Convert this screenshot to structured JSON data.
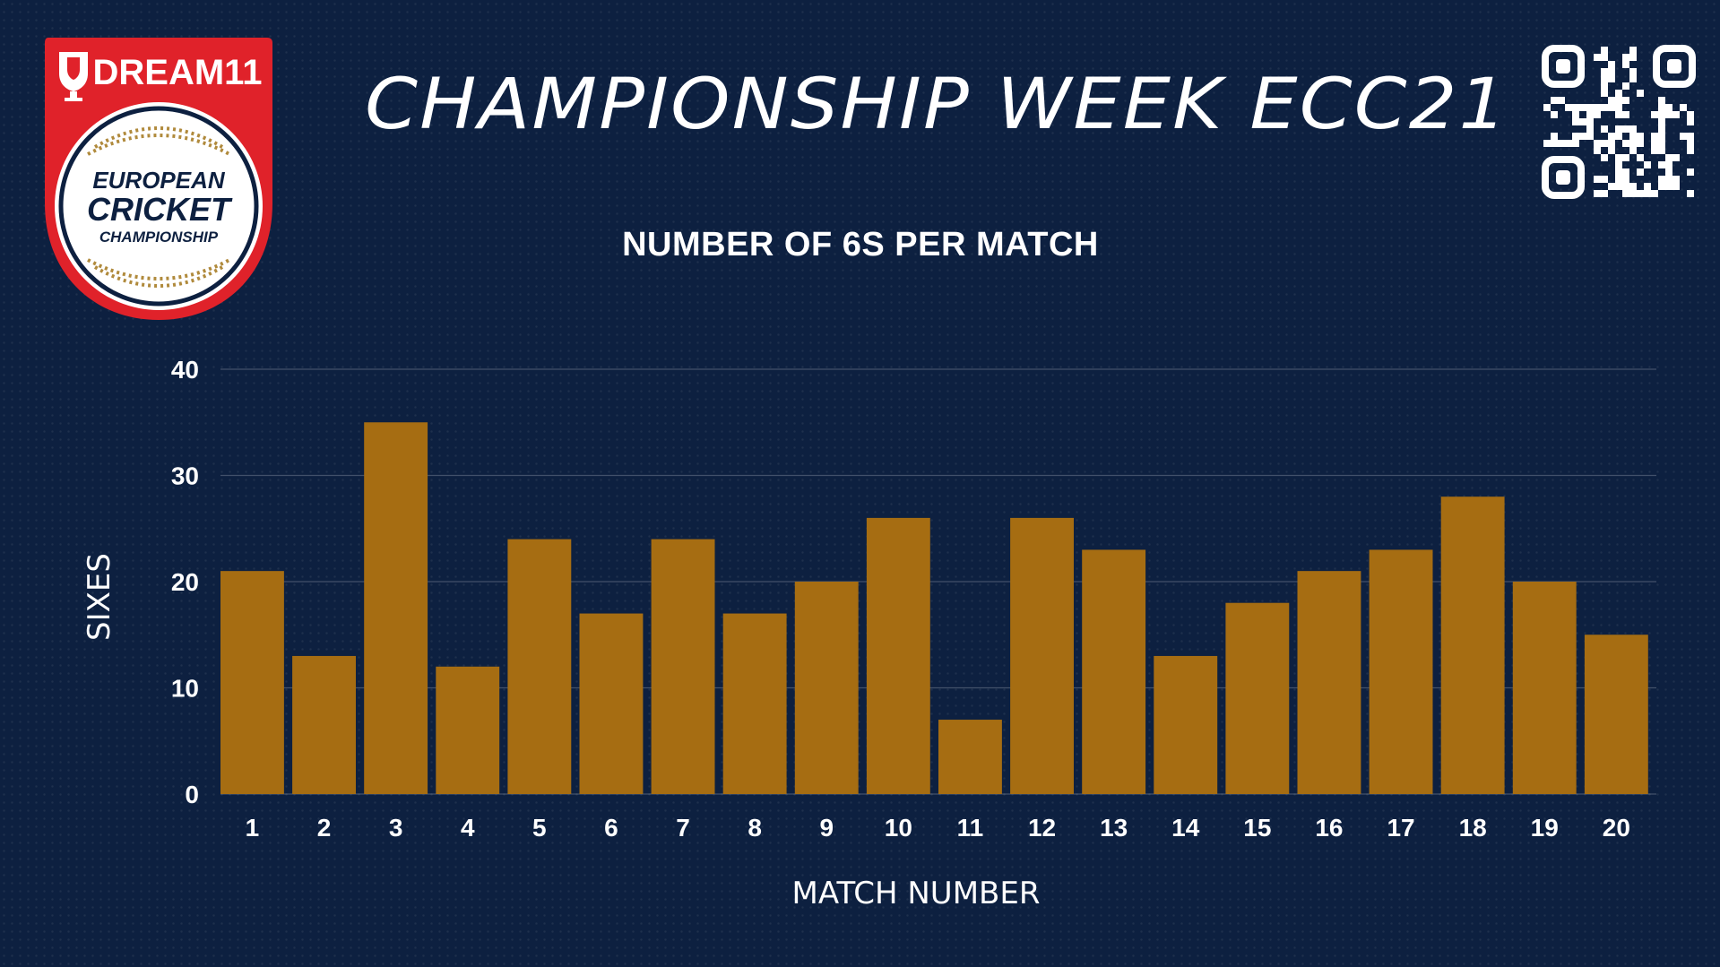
{
  "header": {
    "title": "CHAMPIONSHIP WEEK ECC21",
    "logo_brand": "DREAM11",
    "logo_line1": "EUROPEAN",
    "logo_line2": "CRICKET",
    "logo_line3": "CHAMPIONSHIP"
  },
  "colors": {
    "background": "#0d2040",
    "bar": "#a66d12",
    "logo_red": "#e0222a",
    "logo_gold": "#b08a3c"
  },
  "icons": {
    "qr": "qr-code-icon",
    "dream11": "dream11-shield-icon",
    "ball": "cricket-ball-icon"
  },
  "chart_data": {
    "type": "bar",
    "title": "NUMBER OF 6S PER MATCH",
    "xlabel": "MATCH NUMBER",
    "ylabel": "SIXES",
    "categories": [
      "1",
      "2",
      "3",
      "4",
      "5",
      "6",
      "7",
      "8",
      "9",
      "10",
      "11",
      "12",
      "13",
      "14",
      "15",
      "16",
      "17",
      "18",
      "19",
      "20"
    ],
    "values": [
      21,
      13,
      35,
      12,
      24,
      17,
      24,
      17,
      20,
      26,
      7,
      26,
      23,
      13,
      18,
      21,
      23,
      28,
      20,
      15
    ],
    "ylim": [
      0,
      40
    ],
    "yticks": [
      0,
      10,
      20,
      30,
      40
    ],
    "grid": true,
    "legend": "none"
  }
}
